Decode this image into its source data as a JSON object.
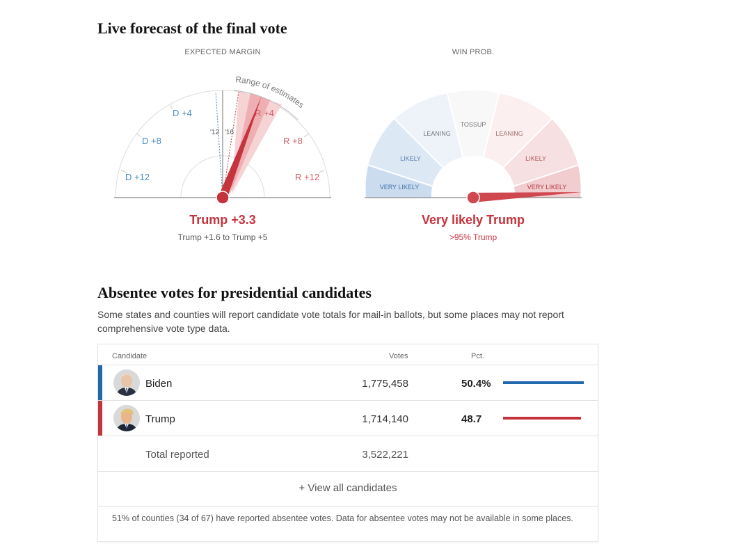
{
  "forecast": {
    "title": "Live forecast of the final vote",
    "margin_gauge": {
      "header": "EXPECTED MARGIN",
      "range_label": "Range of estimates",
      "ticks": [
        "D +12",
        "D +8",
        "D +4",
        "R +4",
        "R +8",
        "R +12"
      ],
      "past_labels": [
        "'12",
        "'16"
      ],
      "headline": "Trump +3.3",
      "subline": "Trump +1.6 to Trump +5"
    },
    "prob_gauge": {
      "header": "WIN PROB.",
      "segments": [
        "VERY LIKELY",
        "LIKELY",
        "LEANING",
        "TOSSUP",
        "LEANING",
        "LIKELY",
        "VERY LIKELY"
      ],
      "headline": "Very likely Trump",
      "subline": ">95% Trump"
    }
  },
  "absentee": {
    "title": "Absentee votes for presidential candidates",
    "description": "Some states and counties will report candidate vote totals for mail-in ballots, but some places may not report comprehensive vote type data.",
    "columns": {
      "candidate": "Candidate",
      "votes": "Votes",
      "pct": "Pct."
    },
    "rows": [
      {
        "name": "Biden",
        "votes": "1,775,458",
        "pct": "50.4%",
        "pct_value": 50.4,
        "color": "#2169ad"
      },
      {
        "name": "Trump",
        "votes": "1,714,140",
        "pct": "48.7",
        "pct_value": 48.7,
        "color": "#c5333d"
      }
    ],
    "total_label": "Total reported",
    "total_votes": "3,522,221",
    "view_all": "+ View all candidates",
    "footnote": "51% of counties (34 of 67) have reported absentee votes. Data for absentee votes may not be available in some places."
  },
  "colors": {
    "dem": "#2169ad",
    "rep": "#c5333d"
  }
}
